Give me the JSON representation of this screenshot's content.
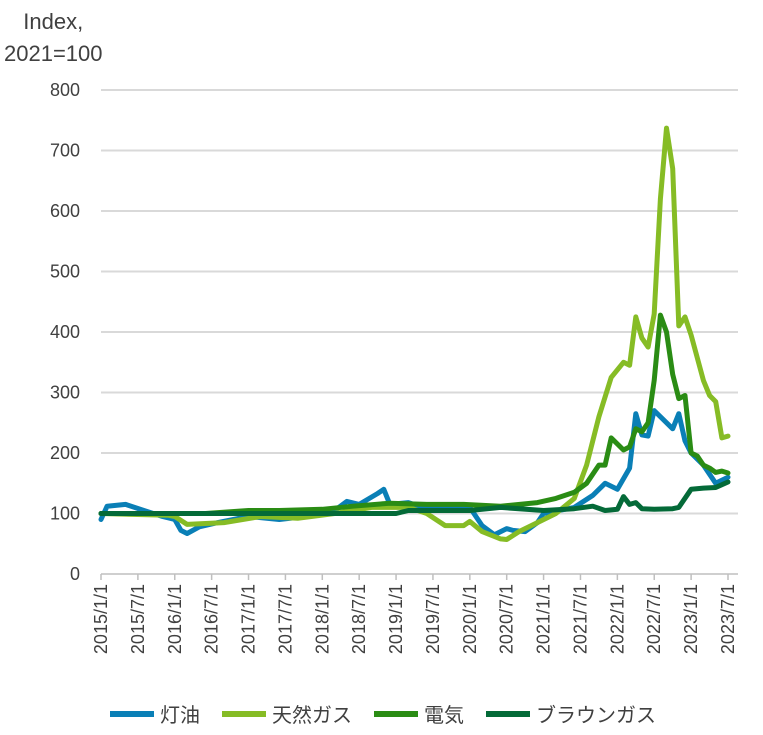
{
  "chart_data": {
    "type": "line",
    "ylabel_line1": "Index,",
    "ylabel_line2": "2021=100",
    "ylim": [
      0,
      800
    ],
    "yticks": [
      0,
      100,
      200,
      300,
      400,
      500,
      600,
      700,
      800
    ],
    "xlim": [
      "2015-01",
      "2023-07"
    ],
    "xticks": [
      "2015/1/1",
      "2015/7/1",
      "2016/1/1",
      "2016/7/1",
      "2017/1/1",
      "2017/7/1",
      "2018/1/1",
      "2018/7/1",
      "2019/1/1",
      "2019/7/1",
      "2020/1/1",
      "2020/7/1",
      "2021/1/1",
      "2021/7/1",
      "2022/1/1",
      "2022/7/1",
      "2023/1/1",
      "2023/7/1"
    ],
    "grid": "horizontal",
    "legend_position": "bottom",
    "series": [
      {
        "name": "灯油",
        "color": "#0a7fb6",
        "points": [
          [
            "2015-01",
            90
          ],
          [
            "2015-02",
            112
          ],
          [
            "2015-05",
            115
          ],
          [
            "2015-08",
            105
          ],
          [
            "2015-11",
            95
          ],
          [
            "2016-01",
            90
          ],
          [
            "2016-02",
            72
          ],
          [
            "2016-03",
            67
          ],
          [
            "2016-05",
            78
          ],
          [
            "2016-08",
            85
          ],
          [
            "2017-01",
            95
          ],
          [
            "2017-06",
            90
          ],
          [
            "2017-12",
            97
          ],
          [
            "2018-03",
            105
          ],
          [
            "2018-05",
            120
          ],
          [
            "2018-07",
            115
          ],
          [
            "2018-10",
            133
          ],
          [
            "2018-11",
            140
          ],
          [
            "2018-12",
            115
          ],
          [
            "2019-03",
            118
          ],
          [
            "2019-06",
            108
          ],
          [
            "2019-09",
            113
          ],
          [
            "2020-01",
            110
          ],
          [
            "2020-03",
            80
          ],
          [
            "2020-05",
            65
          ],
          [
            "2020-07",
            75
          ],
          [
            "2020-08",
            72
          ],
          [
            "2020-10",
            70
          ],
          [
            "2020-12",
            85
          ],
          [
            "2021-01",
            100
          ],
          [
            "2021-06",
            110
          ],
          [
            "2021-09",
            130
          ],
          [
            "2021-11",
            150
          ],
          [
            "2022-01",
            140
          ],
          [
            "2022-03",
            175
          ],
          [
            "2022-04",
            265
          ],
          [
            "2022-05",
            230
          ],
          [
            "2022-06",
            228
          ],
          [
            "2022-07",
            270
          ],
          [
            "2022-10",
            240
          ],
          [
            "2022-11",
            265
          ],
          [
            "2022-12",
            220
          ],
          [
            "2023-01",
            200
          ],
          [
            "2023-03",
            180
          ],
          [
            "2023-05",
            150
          ],
          [
            "2023-07",
            160
          ]
        ]
      },
      {
        "name": "天然ガス",
        "color": "#86bc25",
        "points": [
          [
            "2015-01",
            100
          ],
          [
            "2015-12",
            97
          ],
          [
            "2016-01",
            95
          ],
          [
            "2016-03",
            82
          ],
          [
            "2016-09",
            85
          ],
          [
            "2017-03",
            95
          ],
          [
            "2017-09",
            92
          ],
          [
            "2018-03",
            100
          ],
          [
            "2018-09",
            110
          ],
          [
            "2019-03",
            110
          ],
          [
            "2019-06",
            100
          ],
          [
            "2019-09",
            80
          ],
          [
            "2019-12",
            80
          ],
          [
            "2020-01",
            87
          ],
          [
            "2020-03",
            70
          ],
          [
            "2020-06",
            58
          ],
          [
            "2020-07",
            57
          ],
          [
            "2020-09",
            70
          ],
          [
            "2020-12",
            85
          ],
          [
            "2021-03",
            100
          ],
          [
            "2021-06",
            125
          ],
          [
            "2021-08",
            180
          ],
          [
            "2021-10",
            260
          ],
          [
            "2021-12",
            325
          ],
          [
            "2022-02",
            350
          ],
          [
            "2022-03",
            345
          ],
          [
            "2022-04",
            425
          ],
          [
            "2022-05",
            390
          ],
          [
            "2022-06",
            375
          ],
          [
            "2022-07",
            430
          ],
          [
            "2022-08",
            620
          ],
          [
            "2022-09",
            737
          ],
          [
            "2022-10",
            670
          ],
          [
            "2022-11",
            410
          ],
          [
            "2022-12",
            425
          ],
          [
            "2023-01",
            395
          ],
          [
            "2023-03",
            320
          ],
          [
            "2023-04",
            295
          ],
          [
            "2023-05",
            285
          ],
          [
            "2023-06",
            225
          ],
          [
            "2023-07",
            228
          ]
        ]
      },
      {
        "name": "電気",
        "color": "#2a8c14",
        "points": [
          [
            "2015-01",
            100
          ],
          [
            "2016-01",
            100
          ],
          [
            "2016-06",
            100
          ],
          [
            "2017-01",
            105
          ],
          [
            "2017-06",
            105
          ],
          [
            "2018-01",
            107
          ],
          [
            "2018-06",
            112
          ],
          [
            "2018-12",
            117
          ],
          [
            "2019-06",
            115
          ],
          [
            "2019-12",
            115
          ],
          [
            "2020-06",
            112
          ],
          [
            "2020-12",
            118
          ],
          [
            "2021-03",
            125
          ],
          [
            "2021-06",
            135
          ],
          [
            "2021-08",
            150
          ],
          [
            "2021-10",
            180
          ],
          [
            "2021-11",
            180
          ],
          [
            "2021-12",
            225
          ],
          [
            "2022-02",
            205
          ],
          [
            "2022-03",
            210
          ],
          [
            "2022-04",
            240
          ],
          [
            "2022-05",
            235
          ],
          [
            "2022-06",
            250
          ],
          [
            "2022-07",
            320
          ],
          [
            "2022-08",
            428
          ],
          [
            "2022-09",
            400
          ],
          [
            "2022-10",
            330
          ],
          [
            "2022-11",
            290
          ],
          [
            "2022-12",
            295
          ],
          [
            "2023-01",
            200
          ],
          [
            "2023-02",
            195
          ],
          [
            "2023-03",
            180
          ],
          [
            "2023-04",
            175
          ],
          [
            "2023-05",
            168
          ],
          [
            "2023-06",
            170
          ],
          [
            "2023-07",
            167
          ]
        ]
      },
      {
        "name": "ブラウンガス",
        "color": "#046a38",
        "points": [
          [
            "2015-01",
            100
          ],
          [
            "2019-01",
            100
          ],
          [
            "2019-03",
            105
          ],
          [
            "2020-01",
            105
          ],
          [
            "2020-06",
            110
          ],
          [
            "2021-01",
            105
          ],
          [
            "2021-06",
            108
          ],
          [
            "2021-09",
            112
          ],
          [
            "2021-11",
            105
          ],
          [
            "2022-01",
            107
          ],
          [
            "2022-02",
            128
          ],
          [
            "2022-03",
            115
          ],
          [
            "2022-04",
            118
          ],
          [
            "2022-05",
            108
          ],
          [
            "2022-07",
            107
          ],
          [
            "2022-10",
            108
          ],
          [
            "2022-11",
            110
          ],
          [
            "2023-01",
            140
          ],
          [
            "2023-03",
            142
          ],
          [
            "2023-05",
            143
          ],
          [
            "2023-07",
            152
          ]
        ]
      }
    ]
  }
}
